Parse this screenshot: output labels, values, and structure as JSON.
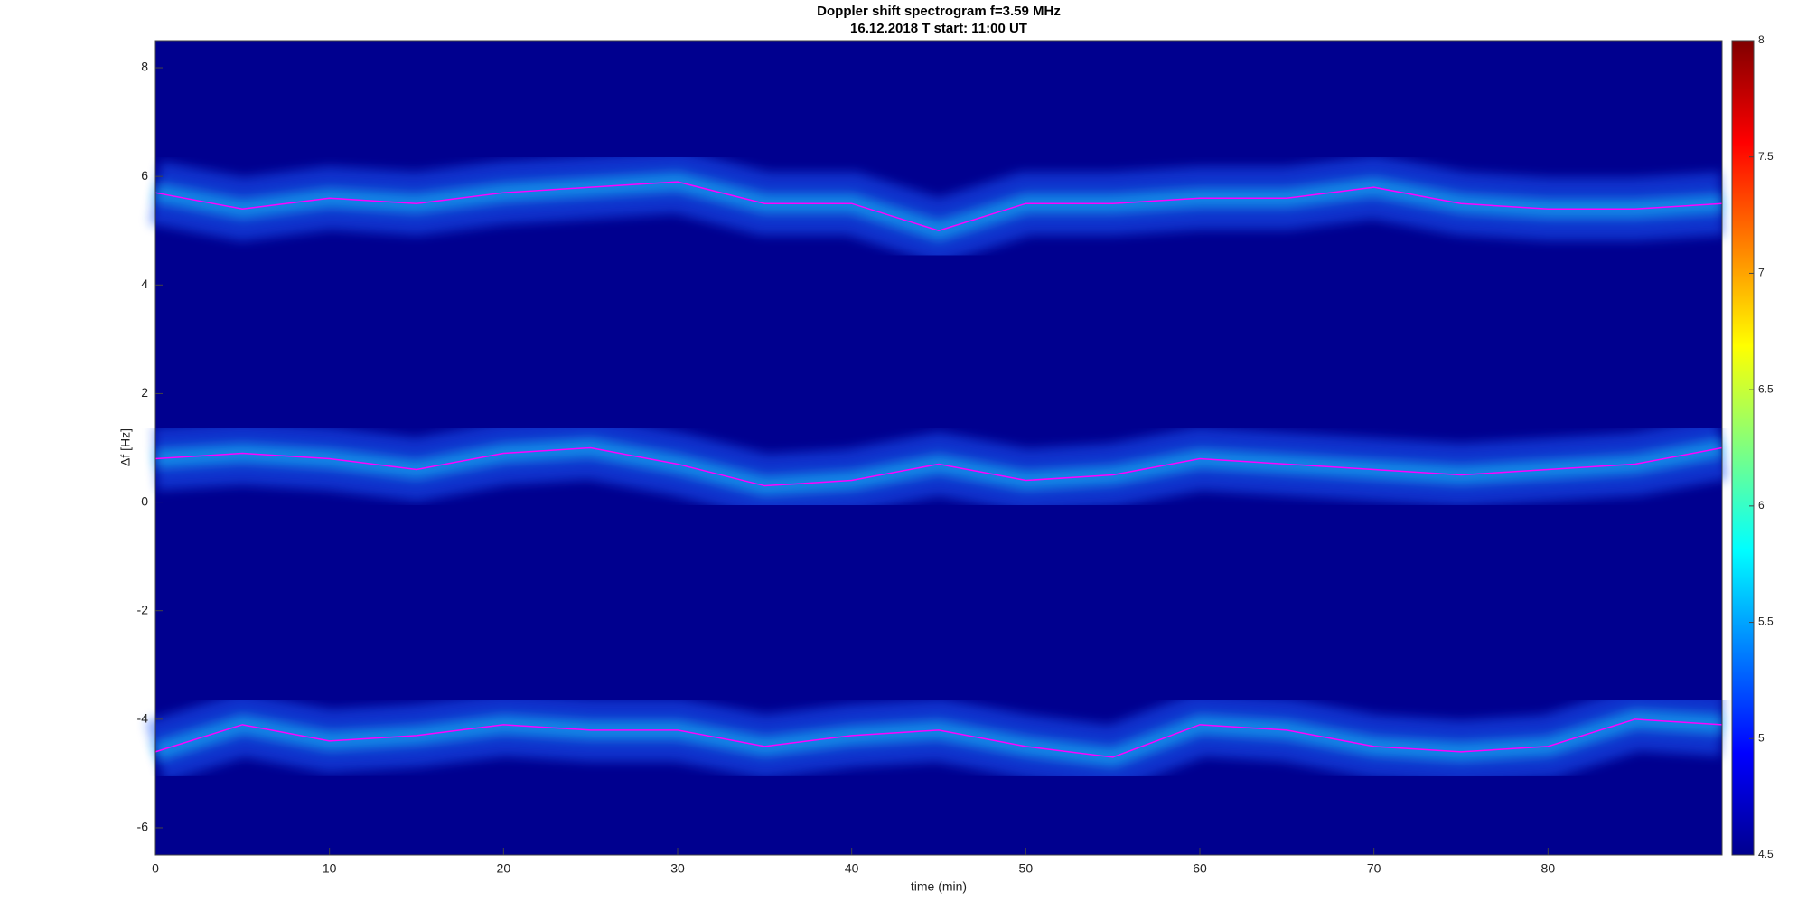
{
  "chart_data": {
    "type": "spectrogram",
    "title": "Doppler shift spectrogram f=3.59 MHz",
    "subtitle": "16.12.2018   T start: 11:00 UT",
    "xlabel": "time (min)",
    "ylabel": "Δf [Hz]",
    "xlim": [
      0,
      90
    ],
    "xticks": [
      0,
      10,
      20,
      30,
      40,
      50,
      60,
      70,
      80
    ],
    "ylim": [
      -6.5,
      8.5
    ],
    "yticks": [
      -6,
      -4,
      -2,
      0,
      2,
      4,
      6,
      8
    ],
    "background": "#00008f",
    "clim": [
      4.5,
      8
    ],
    "cticks": [
      4.5,
      5,
      5.5,
      6,
      6.5,
      7,
      7.5,
      8
    ],
    "x": [
      0,
      5,
      10,
      15,
      20,
      25,
      30,
      35,
      40,
      45,
      50,
      55,
      60,
      65,
      70,
      75,
      80,
      85,
      90
    ],
    "series": [
      {
        "color": "#ff00ff",
        "values": [
          5.7,
          5.4,
          5.6,
          5.5,
          5.7,
          5.8,
          5.9,
          5.5,
          5.5,
          5.0,
          5.5,
          5.5,
          5.6,
          5.6,
          5.8,
          5.5,
          5.4,
          5.4,
          5.5
        ]
      },
      {
        "color": "#ff00ff",
        "values": [
          0.8,
          0.9,
          0.8,
          0.6,
          0.9,
          1.0,
          0.7,
          0.3,
          0.4,
          0.7,
          0.4,
          0.5,
          0.8,
          0.7,
          0.6,
          0.5,
          0.6,
          0.7,
          1.0
        ]
      },
      {
        "color": "#ff00ff",
        "values": [
          -4.6,
          -4.1,
          -4.4,
          -4.3,
          -4.1,
          -4.2,
          -4.2,
          -4.5,
          -4.3,
          -4.2,
          -4.5,
          -4.7,
          -4.1,
          -4.2,
          -4.5,
          -4.6,
          -4.5,
          -4.0,
          -4.1
        ]
      }
    ]
  }
}
